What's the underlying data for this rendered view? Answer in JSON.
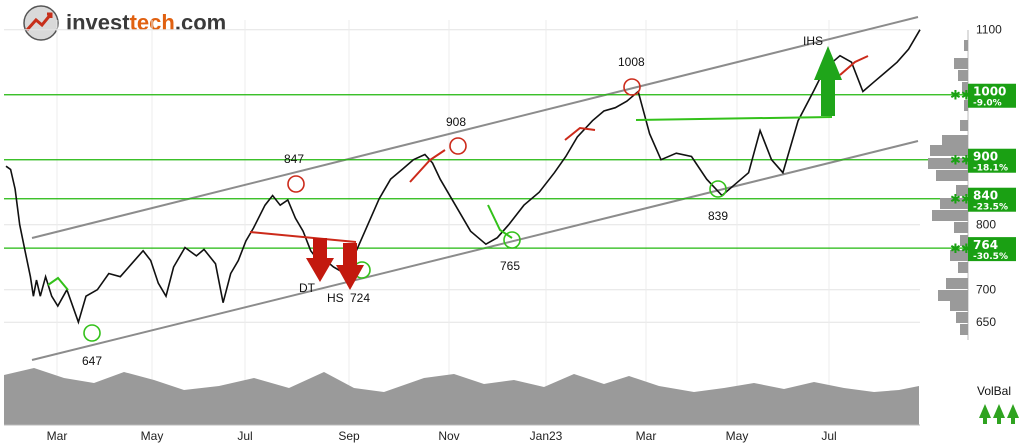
{
  "logo": {
    "text_invest": "invest",
    "text_tech": "tech",
    "text_com": ".com"
  },
  "colors": {
    "price_line": "#111111",
    "up_segment": "#cc2a1a",
    "down_segment": "#33c11a",
    "support_line": "#22b80e",
    "channel_line": "#8c8c8c",
    "volume_area": "#9a9a9a",
    "level_box": "#1aa013",
    "buy_arrow": "#1fa51a",
    "sell_arrow": "#c3190e"
  },
  "chart_data": {
    "type": "line",
    "y_ticks": [
      650,
      700,
      800,
      900,
      1000,
      1100
    ],
    "ylim": [
      638,
      1115
    ],
    "x_months": [
      "Mar",
      "May",
      "Jul",
      "Sep",
      "Nov",
      "Jan23",
      "Mar",
      "May",
      "Jul"
    ],
    "price_series": [
      [
        0,
        890
      ],
      [
        0.06,
        885
      ],
      [
        0.12,
        855
      ],
      [
        0.18,
        800
      ],
      [
        0.25,
        760
      ],
      [
        0.32,
        720
      ],
      [
        0.36,
        690
      ],
      [
        0.4,
        715
      ],
      [
        0.45,
        690
      ],
      [
        0.52,
        720
      ],
      [
        0.6,
        690
      ],
      [
        0.68,
        675
      ],
      [
        0.8,
        700
      ],
      [
        0.95,
        650
      ],
      [
        1.05,
        690
      ],
      [
        1.2,
        700
      ],
      [
        1.35,
        725
      ],
      [
        1.5,
        720
      ],
      [
        1.65,
        740
      ],
      [
        1.8,
        760
      ],
      [
        1.9,
        745
      ],
      [
        2.0,
        710
      ],
      [
        2.1,
        690
      ],
      [
        2.2,
        735
      ],
      [
        2.35,
        765
      ],
      [
        2.5,
        752
      ],
      [
        2.6,
        762
      ],
      [
        2.75,
        740
      ],
      [
        2.85,
        680
      ],
      [
        2.95,
        725
      ],
      [
        3.05,
        745
      ],
      [
        3.15,
        775
      ],
      [
        3.25,
        795
      ],
      [
        3.4,
        830
      ],
      [
        3.5,
        845
      ],
      [
        3.6,
        830
      ],
      [
        3.7,
        838
      ],
      [
        3.8,
        810
      ],
      [
        3.9,
        790
      ],
      [
        4.0,
        760
      ],
      [
        4.1,
        745
      ],
      [
        4.2,
        745
      ],
      [
        4.3,
        735
      ],
      [
        4.45,
        725
      ],
      [
        4.6,
        760
      ],
      [
        4.75,
        800
      ],
      [
        4.9,
        840
      ],
      [
        5.05,
        870
      ],
      [
        5.2,
        885
      ],
      [
        5.35,
        900
      ],
      [
        5.5,
        908
      ],
      [
        5.6,
        895
      ],
      [
        5.7,
        870
      ],
      [
        5.85,
        840
      ],
      [
        6.0,
        810
      ],
      [
        6.1,
        790
      ],
      [
        6.2,
        780
      ],
      [
        6.3,
        770
      ],
      [
        6.45,
        780
      ],
      [
        6.6,
        800
      ],
      [
        6.8,
        830
      ],
      [
        7.0,
        850
      ],
      [
        7.2,
        880
      ],
      [
        7.35,
        905
      ],
      [
        7.5,
        935
      ],
      [
        7.7,
        960
      ],
      [
        7.85,
        975
      ],
      [
        8.0,
        980
      ],
      [
        8.15,
        990
      ],
      [
        8.3,
        1005
      ],
      [
        8.45,
        940
      ],
      [
        8.6,
        900
      ],
      [
        8.8,
        910
      ],
      [
        9.0,
        905
      ],
      [
        9.2,
        870
      ],
      [
        9.4,
        845
      ],
      [
        9.55,
        860
      ],
      [
        9.75,
        880
      ],
      [
        9.9,
        945
      ],
      [
        10.05,
        900
      ],
      [
        10.2,
        880
      ],
      [
        10.4,
        960
      ],
      [
        10.6,
        1005
      ],
      [
        10.75,
        1040
      ],
      [
        10.95,
        1060
      ],
      [
        11.1,
        1050
      ],
      [
        11.25,
        1005
      ],
      [
        11.4,
        1020
      ],
      [
        11.55,
        1035
      ],
      [
        11.7,
        1050
      ],
      [
        11.85,
        1070
      ],
      [
        12.0,
        1100
      ]
    ],
    "annotations": [
      {
        "label": "647",
        "value": 647
      },
      {
        "label": "847",
        "value": 847
      },
      {
        "label": "908",
        "value": 908
      },
      {
        "label": "1008",
        "value": 1008
      },
      {
        "label": "839",
        "value": 839
      },
      {
        "label": "765",
        "value": 765
      },
      {
        "label": "724",
        "value": 724
      },
      {
        "label": "DT",
        "value": 0
      },
      {
        "label": "HS",
        "value": 0
      },
      {
        "label": "IHS",
        "value": 0
      }
    ],
    "support_levels": [
      {
        "value": 1000,
        "label": "1000",
        "pct": "-9.0%"
      },
      {
        "value": 900,
        "label": "900",
        "pct": "-18.1%"
      },
      {
        "value": 840,
        "label": "840",
        "pct": "-23.5%"
      },
      {
        "value": 764,
        "label": "764",
        "pct": "-30.5%"
      }
    ],
    "plain_ticks": [
      1100,
      800,
      700,
      650
    ],
    "volume_label": "VolBal"
  }
}
